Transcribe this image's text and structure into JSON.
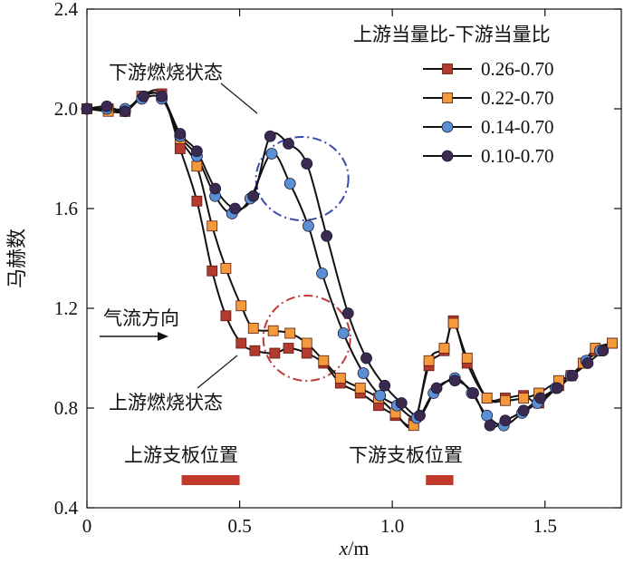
{
  "chart_data": {
    "type": "line",
    "xlabel_italic": "x",
    "xlabel_unit": "/m",
    "ylabel": "马赫数",
    "xlim": [
      0,
      1.75
    ],
    "ylim": [
      0.4,
      2.4
    ],
    "xticks": [
      0,
      0.5,
      1.0,
      1.5
    ],
    "xtick_labels": [
      "0",
      "0.5",
      "1.0",
      "1.5"
    ],
    "yticks": [
      0.4,
      0.8,
      1.2,
      1.6,
      2.0,
      2.4
    ],
    "ytick_labels": [
      "0.4",
      "0.8",
      "1.2",
      "1.6",
      "2.0",
      "2.4"
    ],
    "legend_title": "上游当量比-下游当量比",
    "series": [
      {
        "name": "0.26-0.70",
        "marker": "square",
        "color": "#b33a2e",
        "x": [
          0,
          0.07,
          0.125,
          0.18,
          0.245,
          0.305,
          0.36,
          0.41,
          0.455,
          0.505,
          0.55,
          0.615,
          0.66,
          0.72,
          0.775,
          0.83,
          0.895,
          0.955,
          1.01,
          1.07,
          1.12,
          1.17,
          1.2,
          1.245,
          1.31,
          1.37,
          1.43,
          1.48,
          1.545,
          1.585,
          1.625,
          1.665,
          1.72
        ],
        "y": [
          2.0,
          2.0,
          1.99,
          2.05,
          2.06,
          1.84,
          1.63,
          1.35,
          1.17,
          1.06,
          1.03,
          1.02,
          1.04,
          1.02,
          0.98,
          0.9,
          0.86,
          0.81,
          0.77,
          0.74,
          0.97,
          1.03,
          1.15,
          0.98,
          0.84,
          0.84,
          0.85,
          0.82,
          0.89,
          0.93,
          0.98,
          1.03,
          1.06
        ]
      },
      {
        "name": "0.22-0.70",
        "marker": "square",
        "color": "#f39a3c",
        "x": [
          0,
          0.07,
          0.125,
          0.18,
          0.245,
          0.305,
          0.36,
          0.41,
          0.455,
          0.505,
          0.545,
          0.61,
          0.665,
          0.72,
          0.775,
          0.83,
          0.895,
          0.955,
          1.01,
          1.07,
          1.12,
          1.17,
          1.2,
          1.245,
          1.31,
          1.37,
          1.43,
          1.48,
          1.545,
          1.585,
          1.625,
          1.665,
          1.72
        ],
        "y": [
          2.0,
          1.99,
          1.99,
          2.05,
          2.05,
          1.88,
          1.77,
          1.53,
          1.36,
          1.21,
          1.12,
          1.11,
          1.1,
          1.06,
          0.99,
          0.92,
          0.88,
          0.84,
          0.78,
          0.73,
          0.99,
          1.04,
          1.14,
          1.0,
          0.84,
          0.83,
          0.84,
          0.86,
          0.91,
          0.93,
          0.98,
          1.04,
          1.06
        ]
      },
      {
        "name": "0.14-0.70",
        "marker": "circle",
        "color": "#5b8fd4",
        "x": [
          0,
          0.065,
          0.125,
          0.18,
          0.245,
          0.305,
          0.36,
          0.42,
          0.475,
          0.535,
          0.605,
          0.665,
          0.725,
          0.77,
          0.84,
          0.905,
          0.96,
          1.015,
          1.08,
          1.135,
          1.205,
          1.26,
          1.31,
          1.365,
          1.425,
          1.475,
          1.535,
          1.585,
          1.635,
          1.68
        ],
        "y": [
          2.0,
          2.0,
          2.0,
          2.04,
          2.04,
          1.89,
          1.81,
          1.65,
          1.58,
          1.64,
          1.82,
          1.7,
          1.53,
          1.34,
          1.1,
          0.94,
          0.85,
          0.81,
          0.76,
          0.86,
          0.92,
          0.86,
          0.77,
          0.73,
          0.78,
          0.82,
          0.88,
          0.93,
          0.99,
          1.03
        ]
      },
      {
        "name": "0.10-0.70",
        "marker": "circle",
        "color": "#3b2a50",
        "x": [
          0,
          0.065,
          0.125,
          0.185,
          0.245,
          0.305,
          0.36,
          0.42,
          0.485,
          0.545,
          0.6,
          0.66,
          0.72,
          0.785,
          0.855,
          0.915,
          0.975,
          1.03,
          1.09,
          1.145,
          1.205,
          1.265,
          1.32,
          1.37,
          1.43,
          1.485,
          1.54,
          1.59,
          1.64,
          1.69
        ],
        "y": [
          2.0,
          2.01,
          1.99,
          2.05,
          2.05,
          1.9,
          1.83,
          1.68,
          1.6,
          1.65,
          1.89,
          1.86,
          1.78,
          1.49,
          1.18,
          1.0,
          0.89,
          0.82,
          0.77,
          0.88,
          0.91,
          0.86,
          0.73,
          0.75,
          0.79,
          0.84,
          0.88,
          0.93,
          0.98,
          1.03
        ]
      }
    ],
    "annotations": {
      "downstream_state": "下游燃烧状态",
      "upstream_state": "上游燃烧状态",
      "flow_direction": "气流方向",
      "upstream_strut": "上游支板位置",
      "downstream_strut": "下游支板位置"
    },
    "strut_positions": [
      {
        "name": "upstream",
        "x_start": 0.31,
        "x_end": 0.5
      },
      {
        "name": "downstream",
        "x_start": 1.11,
        "x_end": 1.2
      }
    ],
    "colors": {
      "downstream_circle": "#3b4aa8",
      "upstream_circle": "#c43a3a",
      "strut_bar": "#c0392b"
    }
  }
}
